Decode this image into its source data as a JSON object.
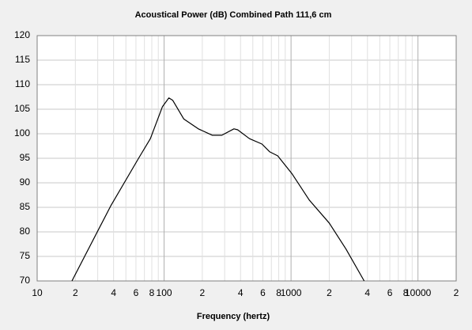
{
  "chart_data": {
    "type": "line",
    "title": "Acoustical Power (dB)    Combined    Path 111,6 cm",
    "xlabel": "Frequency (hertz)",
    "xscale": "log",
    "x": [
      18.8,
      38,
      63,
      78,
      97,
      109,
      117,
      143,
      186,
      240,
      285,
      355,
      380,
      470,
      590,
      680,
      785,
      1020,
      1390,
      2000,
      2710,
      3770
    ],
    "values": [
      70,
      85.3,
      95,
      99,
      105.5,
      107.3,
      106.8,
      103,
      101,
      99.7,
      99.7,
      101,
      100.8,
      99,
      97.9,
      96.3,
      95.5,
      91.8,
      86.5,
      81.8,
      76.5,
      70
    ],
    "color": "#000000",
    "xlim": [
      10,
      20000
    ],
    "ylim": [
      70,
      120
    ],
    "xticks": [
      10,
      {
        "value": 20,
        "label": "2"
      },
      {
        "value": 40,
        "label": "4"
      },
      {
        "value": 60,
        "label": "6"
      },
      {
        "value": 80,
        "label": "8"
      },
      100,
      {
        "value": 200,
        "label": "2"
      },
      {
        "value": 400,
        "label": "4"
      },
      {
        "value": 600,
        "label": "6"
      },
      {
        "value": 800,
        "label": "8"
      },
      1000,
      {
        "value": 2000,
        "label": "2"
      },
      {
        "value": 4000,
        "label": "4"
      },
      {
        "value": 6000,
        "label": "6"
      },
      {
        "value": 8000,
        "label": "8"
      },
      10000,
      {
        "value": 20000,
        "label": "2"
      }
    ],
    "xgrid": [
      30,
      50,
      70,
      90,
      300,
      500,
      700,
      900,
      3000,
      5000,
      7000,
      9000
    ],
    "yticks": [
      70,
      75,
      80,
      85,
      90,
      95,
      100,
      105,
      110,
      115,
      120
    ],
    "grid": true
  }
}
